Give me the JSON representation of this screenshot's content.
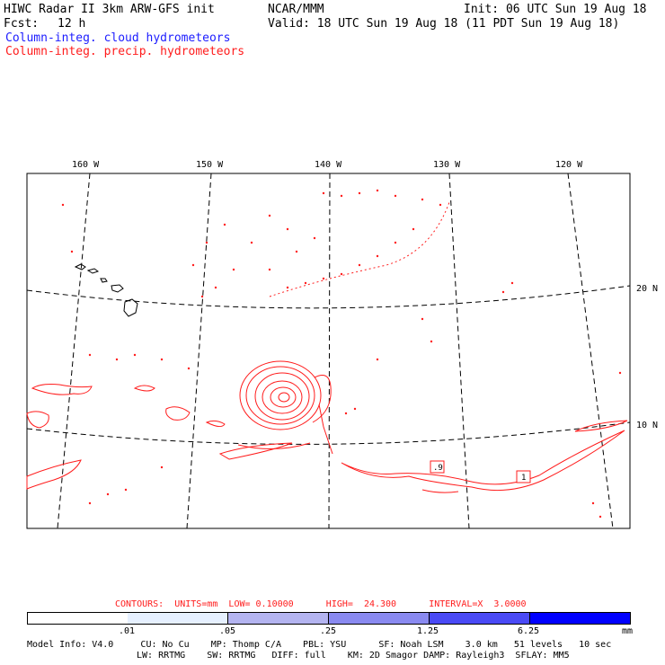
{
  "header": {
    "title": "HIWC Radar II 3km ARW-GFS init",
    "org": "NCAR/MMM",
    "init": "Init: 06 UTC Sun 19 Aug 18",
    "fcst_label": "Fcst:",
    "fcst_value": "12 h",
    "valid": "Valid: 18 UTC Sun 19 Aug 18 (11 PDT Sun 19 Aug 18)",
    "legend_cloud": "Column-integ. cloud hydrometeors",
    "legend_precip": "Column-integ. precip. hydrometeors"
  },
  "colors": {
    "cloud": "#1c1cff",
    "precip": "#ff1c1c",
    "colorbar": [
      "#ffffff",
      "#e6f0ff",
      "#b4b4f0",
      "#9090f0",
      "#5a5af5",
      "#3030f5",
      "#0000ff"
    ]
  },
  "map": {
    "lon_labels": [
      "160 W",
      "150 W",
      "140 W",
      "130 W",
      "120 W"
    ],
    "lat_labels": [
      "20 N",
      "10 N"
    ]
  },
  "contours": {
    "text": "CONTOURS:  UNITS=mm  LOW= 0.10000      HIGH=  24.300      INTERVAL=X  3.0000"
  },
  "colorbar": {
    "labels": [
      ".01",
      ".05",
      ".25",
      "1.25",
      "6.25"
    ],
    "units": "mm"
  },
  "model_info": {
    "line1": "Model Info: V4.0     CU: No Cu    MP: Thomp C/A    PBL: YSU      SF: Noah LSM    3.0 km   51 levels   10 sec",
    "line2": "LW: RRTMG    SW: RRTMG   DIFF: full    KM: 2D Smagor DAMP: Rayleigh3  SFLAY: MM5"
  },
  "annotations": {
    "box1": ".9",
    "box2": "1"
  }
}
